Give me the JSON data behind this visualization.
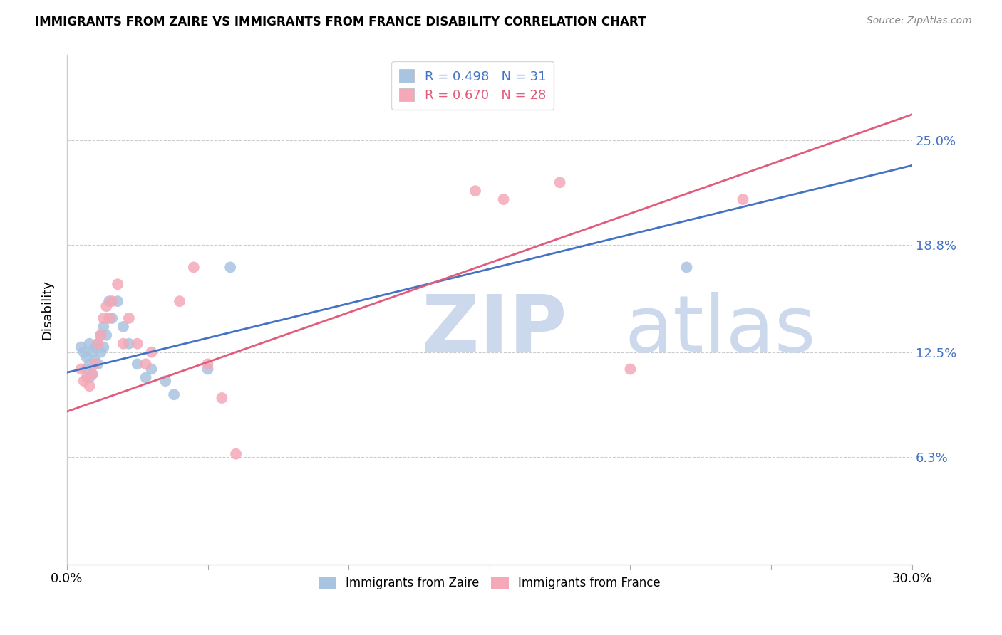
{
  "title": "IMMIGRANTS FROM ZAIRE VS IMMIGRANTS FROM FRANCE DISABILITY CORRELATION CHART",
  "source": "Source: ZipAtlas.com",
  "ylabel": "Disability",
  "xlim": [
    0.0,
    0.3
  ],
  "ylim": [
    0.0,
    0.3
  ],
  "yticks": [
    0.063,
    0.125,
    0.188,
    0.25
  ],
  "ytick_labels": [
    "6.3%",
    "12.5%",
    "18.8%",
    "25.0%"
  ],
  "grid_color": "#cccccc",
  "background_color": "#ffffff",
  "zaire_color": "#a8c4e0",
  "france_color": "#f4a8b8",
  "zaire_line_color": "#4472c4",
  "france_line_color": "#e05c7a",
  "zaire_R": 0.498,
  "zaire_N": 31,
  "france_R": 0.67,
  "france_N": 28,
  "zaire_line_x0": 0.0,
  "zaire_line_y0": 0.113,
  "zaire_line_x1": 0.3,
  "zaire_line_y1": 0.235,
  "france_line_x0": 0.0,
  "france_line_y0": 0.09,
  "france_line_x1": 0.3,
  "france_line_y1": 0.265,
  "zaire_x": [
    0.005,
    0.006,
    0.007,
    0.007,
    0.008,
    0.008,
    0.008,
    0.009,
    0.009,
    0.01,
    0.01,
    0.011,
    0.011,
    0.012,
    0.012,
    0.013,
    0.013,
    0.014,
    0.015,
    0.016,
    0.018,
    0.02,
    0.022,
    0.025,
    0.028,
    0.03,
    0.035,
    0.038,
    0.05,
    0.058,
    0.22
  ],
  "zaire_y": [
    0.128,
    0.125,
    0.122,
    0.115,
    0.13,
    0.118,
    0.11,
    0.125,
    0.112,
    0.128,
    0.12,
    0.13,
    0.118,
    0.135,
    0.125,
    0.14,
    0.128,
    0.135,
    0.155,
    0.145,
    0.155,
    0.14,
    0.13,
    0.118,
    0.11,
    0.115,
    0.108,
    0.1,
    0.115,
    0.175,
    0.175
  ],
  "france_x": [
    0.005,
    0.006,
    0.007,
    0.008,
    0.009,
    0.01,
    0.011,
    0.012,
    0.013,
    0.014,
    0.015,
    0.016,
    0.018,
    0.02,
    0.022,
    0.025,
    0.028,
    0.03,
    0.04,
    0.045,
    0.05,
    0.055,
    0.06,
    0.145,
    0.155,
    0.175,
    0.2,
    0.24
  ],
  "france_y": [
    0.115,
    0.108,
    0.11,
    0.105,
    0.112,
    0.118,
    0.13,
    0.135,
    0.145,
    0.152,
    0.145,
    0.155,
    0.165,
    0.13,
    0.145,
    0.13,
    0.118,
    0.125,
    0.155,
    0.175,
    0.118,
    0.098,
    0.065,
    0.22,
    0.215,
    0.225,
    0.115,
    0.215
  ]
}
